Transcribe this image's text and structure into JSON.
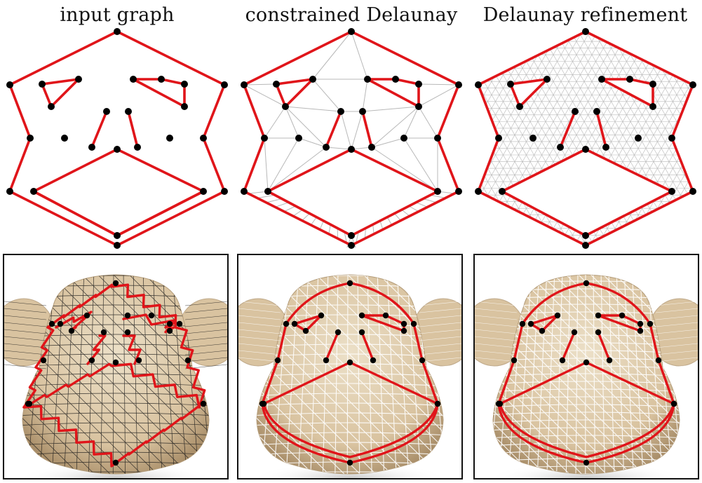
{
  "titles": {
    "input_graph": "input graph",
    "constrained": "constrained Delaunay",
    "refinement": "Delaunay refinement"
  },
  "colors": {
    "constraint_edge": "#e0151a",
    "vertex": "#000000",
    "triangulation_edge": "#b8b8b8",
    "surface": "#d9c3a0",
    "surface_shadow": "#a88d68",
    "mesh_dark": "#1a1a1a",
    "mesh_light": "#ffffff"
  }
}
